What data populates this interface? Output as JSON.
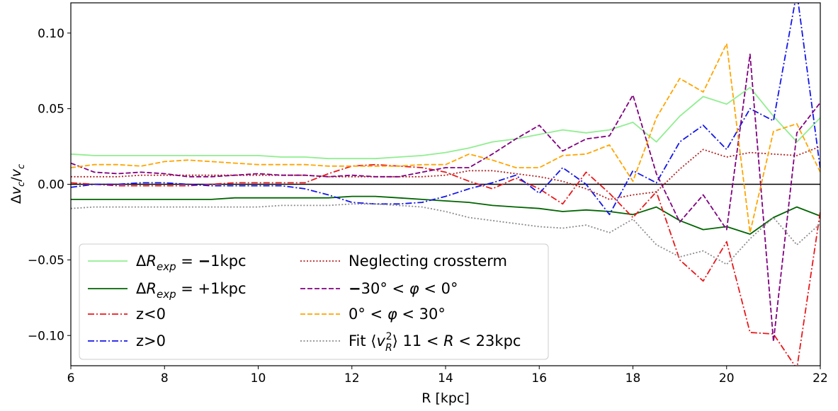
{
  "chart_data": {
    "type": "line",
    "xlabel": "R [kpc]",
    "ylabel": "Δv_c/v_c",
    "xlim": [
      6,
      22
    ],
    "ylim": [
      -0.12,
      0.12
    ],
    "xticks": [
      "6",
      "8",
      "10",
      "12",
      "14",
      "16",
      "18",
      "20",
      "22"
    ],
    "yticks": [
      "−0.10",
      "−0.05",
      "0.00",
      "0.05",
      "0.10"
    ],
    "legend_position": "lower-left",
    "reference_line_y": 0,
    "series": [
      {
        "name": "ΔR_exp = −1kpc",
        "color": "#90ee90",
        "dash": "solid",
        "x": [
          6,
          6.5,
          7,
          7.5,
          8,
          8.5,
          9,
          9.5,
          10,
          10.5,
          11,
          11.5,
          12,
          12.5,
          13,
          13.5,
          14,
          14.5,
          15,
          15.5,
          16,
          16.5,
          17,
          17.5,
          18,
          18.5,
          19,
          19.5,
          20,
          20.5,
          21,
          21.5,
          22
        ],
        "y": [
          0.02,
          0.019,
          0.019,
          0.019,
          0.019,
          0.019,
          0.019,
          0.019,
          0.019,
          0.018,
          0.018,
          0.017,
          0.017,
          0.017,
          0.018,
          0.019,
          0.021,
          0.024,
          0.028,
          0.03,
          0.033,
          0.036,
          0.034,
          0.036,
          0.041,
          0.028,
          0.045,
          0.058,
          0.053,
          0.064,
          0.045,
          0.028,
          0.044
        ]
      },
      {
        "name": "ΔR_exp = +1kpc",
        "color": "#006400",
        "dash": "solid",
        "x": [
          6,
          6.5,
          7,
          7.5,
          8,
          8.5,
          9,
          9.5,
          10,
          10.5,
          11,
          11.5,
          12,
          12.5,
          13,
          13.5,
          14,
          14.5,
          15,
          15.5,
          16,
          16.5,
          17,
          17.5,
          18,
          18.5,
          19,
          19.5,
          20,
          20.5,
          21,
          21.5,
          22
        ],
        "y": [
          -0.01,
          -0.01,
          -0.01,
          -0.01,
          -0.01,
          -0.01,
          -0.01,
          -0.009,
          -0.009,
          -0.009,
          -0.009,
          -0.009,
          -0.008,
          -0.008,
          -0.009,
          -0.01,
          -0.011,
          -0.012,
          -0.014,
          -0.015,
          -0.016,
          -0.018,
          -0.017,
          -0.018,
          -0.02,
          -0.015,
          -0.024,
          -0.03,
          -0.028,
          -0.033,
          -0.022,
          -0.015,
          -0.021
        ]
      },
      {
        "name": "z<0",
        "color": "#e8191c",
        "dash": "dashdot",
        "x": [
          6,
          6.5,
          7,
          7.5,
          8,
          8.5,
          9,
          9.5,
          10,
          10.5,
          11,
          11.5,
          12,
          12.5,
          13,
          13.5,
          14,
          14.5,
          15,
          15.5,
          16,
          16.5,
          17,
          17.5,
          18,
          18.5,
          19,
          19.5,
          20,
          20.5,
          21,
          21.5,
          22
        ],
        "y": [
          0.001,
          0.0,
          -0.001,
          -0.001,
          -0.001,
          -0.001,
          0.0,
          0.001,
          0.001,
          0.001,
          0.001,
          0.007,
          0.012,
          0.013,
          0.012,
          0.011,
          0.008,
          0.002,
          -0.003,
          0.004,
          -0.003,
          -0.013,
          0.008,
          -0.006,
          -0.022,
          -0.005,
          -0.05,
          -0.064,
          -0.038,
          -0.098,
          -0.099,
          -0.122,
          -0.018
        ]
      },
      {
        "name": "z>0",
        "color": "#1416e8",
        "dash": "dashdot",
        "x": [
          6,
          6.5,
          7,
          7.5,
          8,
          8.5,
          9,
          9.5,
          10,
          10.5,
          11,
          11.5,
          12,
          12.5,
          13,
          13.5,
          14,
          14.5,
          15,
          15.5,
          16,
          16.5,
          17,
          17.5,
          18,
          18.5,
          19,
          19.5,
          20,
          20.5,
          21,
          21.5,
          22
        ],
        "y": [
          -0.002,
          0.0,
          0.0,
          0.001,
          0.001,
          0.0,
          -0.001,
          -0.001,
          -0.001,
          -0.001,
          -0.003,
          -0.007,
          -0.012,
          -0.013,
          -0.013,
          -0.012,
          -0.008,
          -0.003,
          0.001,
          0.006,
          -0.006,
          0.011,
          0.0,
          -0.02,
          0.009,
          0.001,
          0.028,
          0.039,
          0.023,
          0.05,
          0.042,
          0.127,
          0.01
        ]
      },
      {
        "name": "Neglecting crossterm",
        "color": "#b22222",
        "dash": "dotted",
        "x": [
          6,
          6.5,
          7,
          7.5,
          8,
          8.5,
          9,
          9.5,
          10,
          10.5,
          11,
          11.5,
          12,
          12.5,
          13,
          13.5,
          14,
          14.5,
          15,
          15.5,
          16,
          16.5,
          17,
          17.5,
          18,
          18.5,
          19,
          19.5,
          20,
          20.5,
          21,
          21.5,
          22
        ],
        "y": [
          0.005,
          0.005,
          0.005,
          0.006,
          0.006,
          0.006,
          0.006,
          0.006,
          0.006,
          0.006,
          0.006,
          0.005,
          0.005,
          0.005,
          0.005,
          0.005,
          0.006,
          0.009,
          0.009,
          0.007,
          0.005,
          0.002,
          -0.003,
          -0.01,
          -0.007,
          -0.005,
          0.01,
          0.023,
          0.018,
          0.021,
          0.02,
          0.019,
          0.025
        ]
      },
      {
        "name": "−30° < φ < 0°",
        "color": "#800080",
        "dash": "dashed",
        "x": [
          6,
          6.5,
          7,
          7.5,
          8,
          8.5,
          9,
          9.5,
          10,
          10.5,
          11,
          11.5,
          12,
          12.5,
          13,
          13.5,
          14,
          14.5,
          15,
          15.5,
          16,
          16.5,
          17,
          17.5,
          18,
          18.5,
          19,
          19.5,
          20,
          20.5,
          21,
          21.5,
          22
        ],
        "y": [
          0.014,
          0.008,
          0.007,
          0.008,
          0.007,
          0.005,
          0.005,
          0.006,
          0.007,
          0.006,
          0.006,
          0.005,
          0.006,
          0.005,
          0.005,
          0.008,
          0.011,
          0.011,
          0.02,
          0.03,
          0.039,
          0.022,
          0.03,
          0.032,
          0.059,
          0.007,
          -0.025,
          -0.007,
          -0.03,
          0.086,
          -0.104,
          0.034,
          0.054
        ]
      },
      {
        "name": "0° < φ < 30°",
        "color": "#ffa500",
        "dash": "dashed",
        "x": [
          6,
          6.5,
          7,
          7.5,
          8,
          8.5,
          9,
          9.5,
          10,
          10.5,
          11,
          11.5,
          12,
          12.5,
          13,
          13.5,
          14,
          14.5,
          15,
          15.5,
          16,
          16.5,
          17,
          17.5,
          18,
          18.5,
          19,
          19.5,
          20,
          20.5,
          21,
          21.5,
          22
        ],
        "y": [
          0.011,
          0.013,
          0.013,
          0.012,
          0.015,
          0.016,
          0.015,
          0.014,
          0.013,
          0.013,
          0.013,
          0.012,
          0.012,
          0.012,
          0.012,
          0.013,
          0.013,
          0.02,
          0.016,
          0.011,
          0.011,
          0.019,
          0.02,
          0.026,
          0.002,
          0.044,
          0.07,
          0.061,
          0.093,
          -0.032,
          0.035,
          0.04,
          0.008
        ]
      },
      {
        "name": "Fit ⟨v_R²⟩ 11 < R < 23kpc",
        "color": "#8c8c8c",
        "dash": "dotted",
        "x": [
          6,
          6.5,
          7,
          7.5,
          8,
          8.5,
          9,
          9.5,
          10,
          10.5,
          11,
          11.5,
          12,
          12.5,
          13,
          13.5,
          14,
          14.5,
          15,
          15.5,
          16,
          16.5,
          17,
          17.5,
          18,
          18.5,
          19,
          19.5,
          20,
          20.5,
          21,
          21.5,
          22
        ],
        "y": [
          -0.016,
          -0.015,
          -0.015,
          -0.015,
          -0.015,
          -0.015,
          -0.015,
          -0.015,
          -0.015,
          -0.014,
          -0.014,
          -0.014,
          -0.013,
          -0.013,
          -0.014,
          -0.015,
          -0.018,
          -0.022,
          -0.024,
          -0.026,
          -0.028,
          -0.029,
          -0.027,
          -0.032,
          -0.023,
          -0.04,
          -0.048,
          -0.044,
          -0.053,
          -0.036,
          -0.022,
          -0.04,
          -0.026
        ]
      }
    ]
  }
}
